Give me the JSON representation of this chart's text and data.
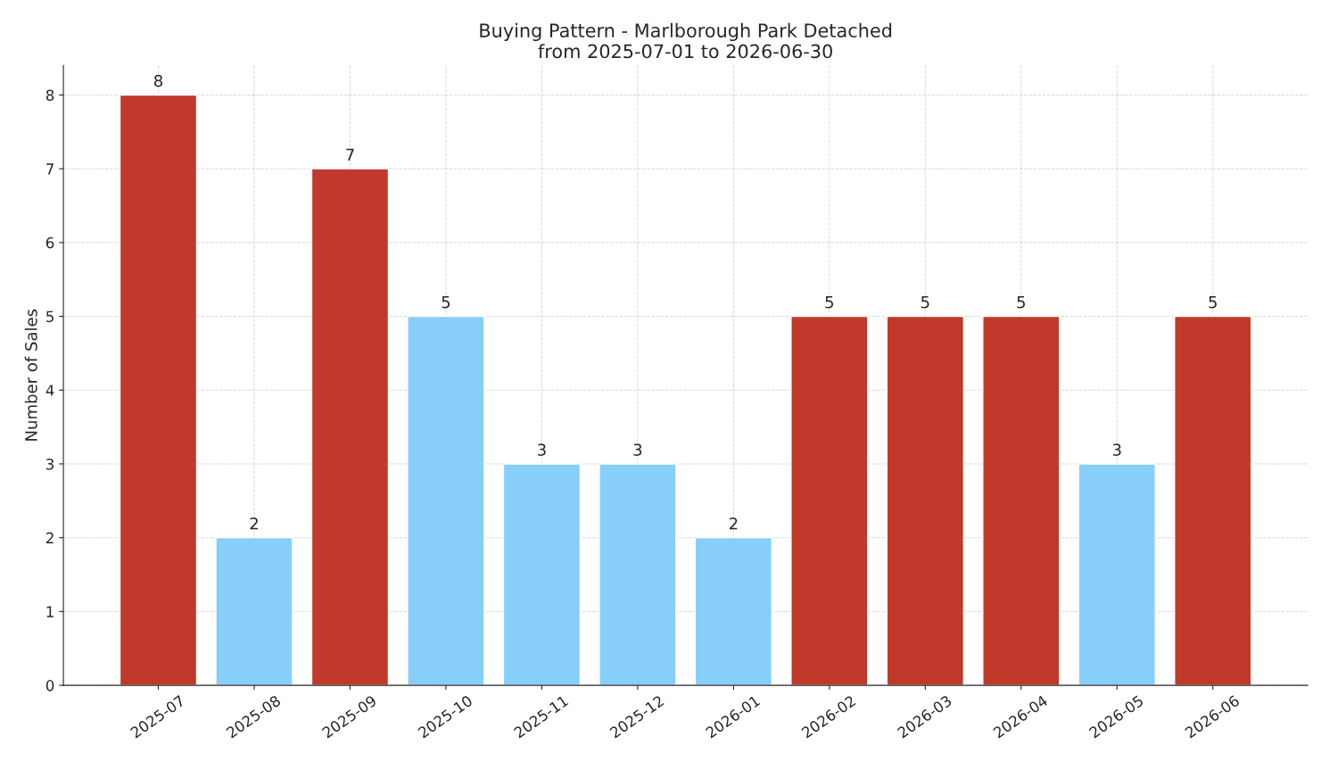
{
  "chart_data": {
    "type": "bar",
    "title": "Buying Pattern - Marlborough Park Detached\nfrom 2025-07-01 to 2026-06-30",
    "ylabel": "Number of Sales",
    "categories": [
      "2025-07",
      "2025-08",
      "2025-09",
      "2025-10",
      "2025-11",
      "2025-12",
      "2026-01",
      "2026-02",
      "2026-03",
      "2026-04",
      "2026-05",
      "2026-06"
    ],
    "values": [
      8,
      2,
      7,
      5,
      3,
      3,
      2,
      5,
      5,
      5,
      3,
      5
    ],
    "colors": [
      "#c0392b",
      "#87cefa",
      "#c0392b",
      "#87cefa",
      "#87cefa",
      "#87cefa",
      "#87cefa",
      "#c0392b",
      "#c0392b",
      "#c0392b",
      "#87cefa",
      "#c0392b"
    ],
    "ylim": [
      0,
      8.4
    ],
    "yticks": [
      0,
      1,
      2,
      3,
      4,
      5,
      6,
      7,
      8
    ],
    "grid": true,
    "data_labels": true
  }
}
